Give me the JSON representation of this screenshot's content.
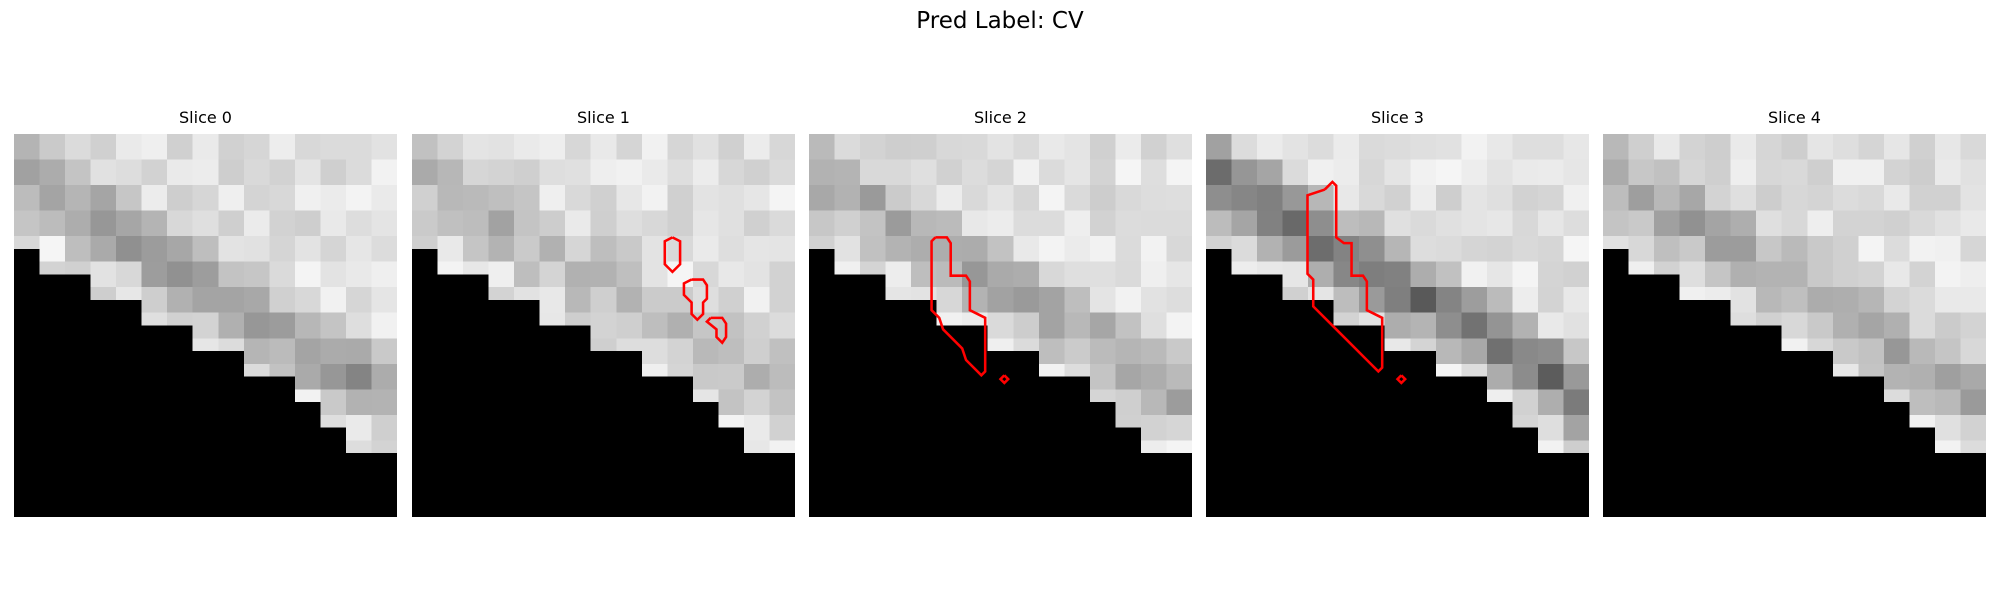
{
  "title": "Pred Label: CV",
  "panels": [
    {
      "title": "Slice 0",
      "seed": 11,
      "band_strength": 0.55,
      "contours": []
    },
    {
      "title": "Slice 1",
      "seed": 23,
      "band_strength": 0.35,
      "contours": [
        [
          [
            13.6,
            5.4
          ],
          [
            14,
            5.6
          ],
          [
            14,
            6.8
          ],
          [
            13.6,
            7.2
          ],
          [
            13.2,
            6.8
          ],
          [
            13.2,
            5.6
          ],
          [
            13.6,
            5.4
          ]
        ],
        [
          [
            14.6,
            7.6
          ],
          [
            15.2,
            7.6
          ],
          [
            15.4,
            7.9
          ],
          [
            15.4,
            8.6
          ],
          [
            15.2,
            8.8
          ],
          [
            15.2,
            9.4
          ],
          [
            14.9,
            9.7
          ],
          [
            14.6,
            9.4
          ],
          [
            14.6,
            8.8
          ],
          [
            14.2,
            8.4
          ],
          [
            14.2,
            7.8
          ],
          [
            14.6,
            7.6
          ]
        ],
        [
          [
            15.6,
            9.6
          ],
          [
            16.2,
            9.6
          ],
          [
            16.4,
            9.9
          ],
          [
            16.4,
            10.6
          ],
          [
            16.2,
            10.9
          ],
          [
            15.9,
            10.6
          ],
          [
            15.9,
            10.2
          ],
          [
            15.4,
            9.8
          ],
          [
            15.6,
            9.6
          ]
        ]
      ]
    },
    {
      "title": "Slice 2",
      "seed": 37,
      "band_strength": 0.45,
      "contours": [
        [
          [
            6.6,
            5.4
          ],
          [
            7.2,
            5.4
          ],
          [
            7.4,
            5.7
          ],
          [
            7.4,
            7.4
          ],
          [
            8.2,
            7.4
          ],
          [
            8.4,
            7.7
          ],
          [
            8.4,
            9.2
          ],
          [
            9.2,
            9.6
          ],
          [
            9.2,
            12.4
          ],
          [
            9,
            12.6
          ],
          [
            8.2,
            11.8
          ],
          [
            8,
            11.2
          ],
          [
            7,
            10.2
          ],
          [
            6.8,
            9.6
          ],
          [
            6.4,
            9.2
          ],
          [
            6.4,
            5.6
          ],
          [
            6.6,
            5.4
          ]
        ],
        [
          [
            10.2,
            12.6
          ],
          [
            10.4,
            12.8
          ],
          [
            10.2,
            13
          ],
          [
            10,
            12.8
          ],
          [
            10.2,
            12.6
          ]
        ]
      ]
    },
    {
      "title": "Slice 3",
      "seed": 51,
      "band_strength": 0.85,
      "contours": [
        [
          [
            6.2,
            2.9
          ],
          [
            6.6,
            2.5
          ],
          [
            6.8,
            2.7
          ],
          [
            6.8,
            5.4
          ],
          [
            7.2,
            5.7
          ],
          [
            7.6,
            5.7
          ],
          [
            7.6,
            7.4
          ],
          [
            8.2,
            7.4
          ],
          [
            8.4,
            7.7
          ],
          [
            8.4,
            9.2
          ],
          [
            9.2,
            9.6
          ],
          [
            9.2,
            12.2
          ],
          [
            9,
            12.4
          ],
          [
            8.4,
            11.8
          ],
          [
            7.4,
            10.8
          ],
          [
            6.4,
            9.8
          ],
          [
            5.6,
            9
          ],
          [
            5.6,
            7.6
          ],
          [
            5.3,
            7.3
          ],
          [
            5.3,
            3.2
          ],
          [
            6.2,
            2.9
          ]
        ],
        [
          [
            10.2,
            12.6
          ],
          [
            10.4,
            12.8
          ],
          [
            10.2,
            13
          ],
          [
            10,
            12.8
          ],
          [
            10.2,
            12.6
          ]
        ]
      ]
    },
    {
      "title": "Slice 4",
      "seed": 67,
      "band_strength": 0.5,
      "contours": []
    }
  ],
  "colors": {
    "contour": "#ff0000",
    "mask": "#000000"
  }
}
